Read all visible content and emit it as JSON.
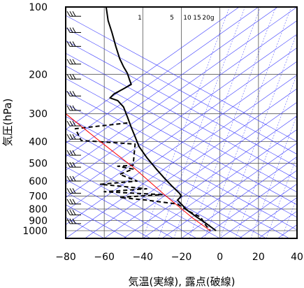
{
  "chart_data": {
    "type": "line",
    "xlabel": "気温(実線), 露点(破線)",
    "ylabel": "気圧(hPa)",
    "x_ticks": [
      -80,
      -60,
      -40,
      -20,
      0,
      20,
      40
    ],
    "y_ticks": [
      100,
      200,
      300,
      400,
      500,
      600,
      700,
      800,
      900,
      1000
    ],
    "xlim": [
      -80,
      40
    ],
    "ylim": [
      1050,
      100
    ],
    "y_scale": "log",
    "grid": true,
    "mixing_ratio_labels": [
      "1",
      "5",
      "10",
      "15",
      "20g"
    ],
    "series": [
      {
        "style": "solid",
        "color": "#000000",
        "points": [
          [
            -59,
            100
          ],
          [
            -58,
            115
          ],
          [
            -56,
            130
          ],
          [
            -54,
            150
          ],
          [
            -52,
            170
          ],
          [
            -50,
            185
          ],
          [
            -48,
            198
          ],
          [
            -47,
            210
          ],
          [
            -46,
            222
          ],
          [
            -50,
            232
          ],
          [
            -55,
            245
          ],
          [
            -57,
            255
          ],
          [
            -53,
            262
          ],
          [
            -50,
            280
          ],
          [
            -48,
            310
          ],
          [
            -46,
            345
          ],
          [
            -44,
            380
          ],
          [
            -42,
            420
          ],
          [
            -38,
            470
          ],
          [
            -33,
            530
          ],
          [
            -29,
            580
          ],
          [
            -25,
            630
          ],
          [
            -21,
            680
          ],
          [
            -20,
            700
          ],
          [
            -22,
            730
          ],
          [
            -20,
            760
          ],
          [
            -17,
            810
          ],
          [
            -12,
            870
          ],
          [
            -7,
            930
          ],
          [
            -2,
            1000
          ]
        ]
      },
      {
        "style": "dashed",
        "color": "#000000",
        "points": [
          [
            -48,
            330
          ],
          [
            -75,
            350
          ],
          [
            -72,
            395
          ],
          [
            -44,
            410
          ],
          [
            -45,
            510
          ],
          [
            -53,
            515
          ],
          [
            -45,
            530
          ],
          [
            -52,
            560
          ],
          [
            -43,
            600
          ],
          [
            -62,
            620
          ],
          [
            -38,
            650
          ],
          [
            -60,
            670
          ],
          [
            -30,
            690
          ],
          [
            -52,
            710
          ],
          [
            -38,
            730
          ],
          [
            -22,
            760
          ],
          [
            -16,
            820
          ],
          [
            -10,
            870
          ],
          [
            -8,
            930
          ],
          [
            -5,
            1000
          ]
        ]
      },
      {
        "style": "solid",
        "color": "#ff0000",
        "points": [
          [
            -80,
            300
          ],
          [
            -62,
            400
          ],
          [
            -45,
            520
          ],
          [
            -28,
            700
          ],
          [
            -14,
            880
          ],
          [
            -5,
            1000
          ]
        ]
      }
    ]
  }
}
